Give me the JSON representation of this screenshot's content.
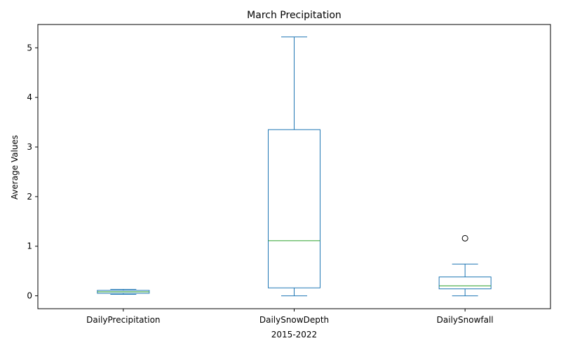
{
  "chart_data": {
    "type": "box",
    "title": "March Precipitation",
    "xlabel": "2015-2022",
    "ylabel": "Average Values",
    "ylim": [
      -0.26,
      5.47
    ],
    "yticks": [
      0,
      1,
      2,
      3,
      4,
      5
    ],
    "grid": false,
    "colors": {
      "box": "#1f77b4",
      "median": "#2ca02c",
      "flier": "#000000"
    },
    "categories": [
      "DailyPrecipitation",
      "DailySnowDepth",
      "DailySnowfall"
    ],
    "series": [
      {
        "category": "DailyPrecipitation",
        "whisker_low": 0.03,
        "q1": 0.05,
        "median": 0.08,
        "q3": 0.11,
        "whisker_high": 0.13,
        "fliers": []
      },
      {
        "category": "DailySnowDepth",
        "whisker_low": 0.0,
        "q1": 0.16,
        "median": 1.11,
        "q3": 3.35,
        "whisker_high": 5.22,
        "fliers": []
      },
      {
        "category": "DailySnowfall",
        "whisker_low": 0.0,
        "q1": 0.14,
        "median": 0.2,
        "q3": 0.38,
        "whisker_high": 0.64,
        "fliers": [
          1.16
        ]
      }
    ]
  }
}
